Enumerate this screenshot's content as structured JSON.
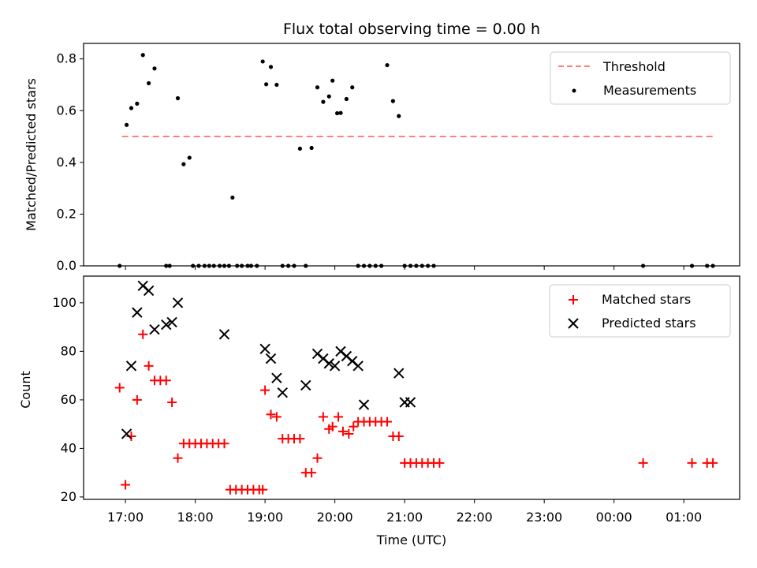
{
  "chart_data": [
    {
      "type": "scatter",
      "title": "Flux total observing time = 0.00 h",
      "xlabel": "",
      "ylabel": "Matched/Predicted stars",
      "ylim": [
        0,
        0.86
      ],
      "yticks": [
        0.0,
        0.2,
        0.4,
        0.6,
        0.8
      ],
      "ytick_labels": [
        "0.0",
        "0.2",
        "0.4",
        "0.6",
        "0.8"
      ],
      "legend_position": "top-right",
      "grid": false,
      "series": [
        {
          "name": "Threshold",
          "kind": "line",
          "style": "dashed",
          "color": "#ff7f7f",
          "x": [
            "16:57",
            "25:25"
          ],
          "y": [
            0.5,
            0.5
          ]
        },
        {
          "name": "Measurements",
          "kind": "scatter",
          "marker": "dot",
          "color": "#000000",
          "x": [
            "16:55",
            "17:01",
            "17:05",
            "17:10",
            "17:15",
            "17:20",
            "17:25",
            "17:35",
            "17:38",
            "17:45",
            "17:50",
            "17:55",
            "17:58",
            "18:03",
            "18:08",
            "18:12",
            "18:16",
            "18:21",
            "18:25",
            "18:29",
            "18:32",
            "18:36",
            "18:40",
            "18:45",
            "18:48",
            "18:53",
            "18:58",
            "19:01",
            "19:05",
            "19:10",
            "19:15",
            "19:20",
            "19:25",
            "19:30",
            "19:35",
            "19:40",
            "19:45",
            "19:50",
            "19:55",
            "19:58",
            "20:02",
            "20:05",
            "20:10",
            "20:15",
            "20:20",
            "20:25",
            "20:30",
            "20:35",
            "20:40",
            "20:45",
            "20:50",
            "20:55",
            "21:00",
            "21:05",
            "21:10",
            "21:15",
            "21:20",
            "21:25",
            "00:25",
            "01:07",
            "01:20",
            "01:25"
          ],
          "y": [
            0,
            0.545,
            0.61,
            0.627,
            0.815,
            0.706,
            0.763,
            0,
            0,
            0.648,
            0.393,
            0.418,
            0,
            0,
            0,
            0,
            0,
            0,
            0,
            0,
            0.264,
            0,
            0,
            0,
            0,
            0,
            0.79,
            0.702,
            0.769,
            0.7,
            0,
            0,
            0,
            0.453,
            0,
            0.456,
            0.69,
            0.634,
            0.655,
            0.716,
            0.59,
            0.591,
            0.645,
            0.69,
            0,
            0,
            0,
            0,
            0,
            0.776,
            0.637,
            0.579,
            0,
            0,
            0,
            0,
            0,
            0,
            0,
            0,
            0,
            0
          ]
        }
      ]
    },
    {
      "type": "scatter",
      "title": "",
      "xlabel": "Time (UTC)",
      "ylabel": "Count",
      "ylim": [
        19,
        111
      ],
      "yticks": [
        20,
        40,
        60,
        80,
        100
      ],
      "ytick_labels": [
        "20",
        "40",
        "60",
        "80",
        "100"
      ],
      "xticks": [
        "17:00",
        "18:00",
        "19:00",
        "20:00",
        "21:00",
        "22:00",
        "23:00",
        "00:00",
        "01:00"
      ],
      "legend_position": "top-right",
      "grid": false,
      "series": [
        {
          "name": "Matched stars",
          "kind": "scatter",
          "marker": "plus",
          "color": "#ff0000",
          "x": [
            "16:55",
            "17:00",
            "17:05",
            "17:10",
            "17:15",
            "17:20",
            "17:25",
            "17:30",
            "17:35",
            "17:40",
            "17:45",
            "17:50",
            "17:55",
            "18:00",
            "18:05",
            "18:10",
            "18:15",
            "18:20",
            "18:25",
            "18:30",
            "18:35",
            "18:40",
            "18:45",
            "18:50",
            "18:55",
            "18:58",
            "19:00",
            "19:05",
            "19:10",
            "19:15",
            "19:20",
            "19:25",
            "19:30",
            "19:35",
            "19:40",
            "19:45",
            "19:50",
            "19:55",
            "19:58",
            "20:03",
            "20:07",
            "20:12",
            "20:16",
            "20:20",
            "20:25",
            "20:30",
            "20:35",
            "20:40",
            "20:45",
            "20:50",
            "20:55",
            "21:00",
            "21:05",
            "21:10",
            "21:15",
            "21:20",
            "21:25",
            "21:30",
            "00:25",
            "01:07",
            "01:20",
            "01:25"
          ],
          "y": [
            65,
            25,
            45,
            60,
            87,
            74,
            68,
            68,
            68,
            59,
            36,
            42,
            42,
            42,
            42,
            42,
            42,
            42,
            42,
            23,
            23,
            23,
            23,
            23,
            23,
            23,
            64,
            54,
            53,
            44,
            44,
            44,
            44,
            30,
            30,
            36,
            53,
            48,
            49,
            53,
            47,
            46,
            49,
            51,
            51,
            51,
            51,
            51,
            51,
            45,
            45,
            34,
            34,
            34,
            34,
            34,
            34,
            34,
            34,
            34,
            34,
            34
          ]
        },
        {
          "name": "Predicted stars",
          "kind": "scatter",
          "marker": "x",
          "color": "#000000",
          "x": [
            "17:01",
            "17:05",
            "17:10",
            "17:15",
            "17:20",
            "17:25",
            "17:35",
            "17:40",
            "17:45",
            "18:25",
            "19:00",
            "19:05",
            "19:10",
            "19:15",
            "19:35",
            "19:45",
            "19:50",
            "19:55",
            "20:00",
            "20:05",
            "20:10",
            "20:15",
            "20:20",
            "20:25",
            "20:55",
            "21:00",
            "21:05"
          ],
          "y": [
            46,
            74,
            96,
            107,
            105,
            89,
            91,
            92,
            100,
            87,
            81,
            77,
            69,
            63,
            66,
            79,
            77,
            75,
            74,
            80,
            78,
            76,
            74,
            58,
            71,
            59,
            59
          ]
        }
      ]
    }
  ]
}
